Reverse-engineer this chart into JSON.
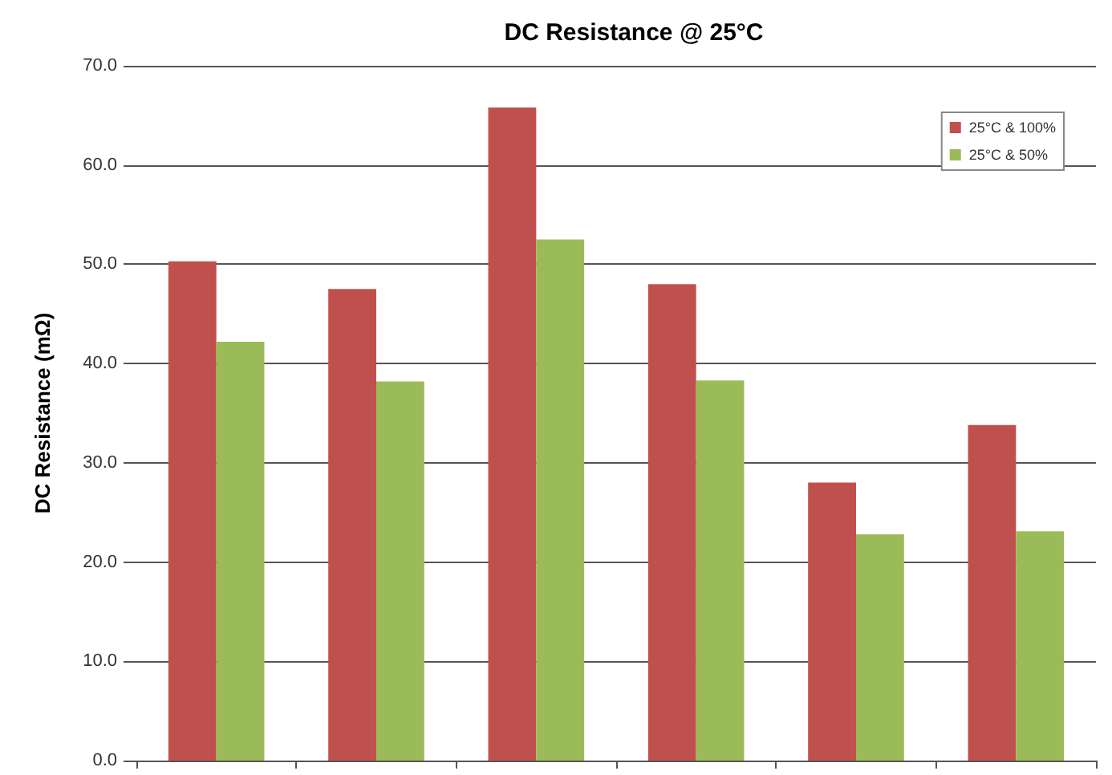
{
  "chart_data": {
    "type": "bar",
    "title": "DC Resistance @ 25°C",
    "ylabel": "DC Resistance (mΩ)",
    "categories": [
      null,
      null,
      null,
      null,
      null,
      null
    ],
    "series": [
      {
        "name": "25°C & 100%",
        "color": "#c0504d",
        "values": [
          50.3,
          47.5,
          65.8,
          48.0,
          28.0,
          33.8
        ]
      },
      {
        "name": "25°C & 50%",
        "color": "#9bbb59",
        "values": [
          42.2,
          38.2,
          52.5,
          38.3,
          22.8,
          23.1
        ]
      }
    ],
    "ylim": [
      0,
      70
    ],
    "yticks": [
      {
        "value": 0,
        "label": "0.0"
      },
      {
        "value": 10,
        "label": "10.0"
      },
      {
        "value": 20,
        "label": "20.0"
      },
      {
        "value": 30,
        "label": "30.0"
      },
      {
        "value": 40,
        "label": "40.0"
      },
      {
        "value": 50,
        "label": "50.0"
      },
      {
        "value": 60,
        "label": "60.0"
      },
      {
        "value": 70,
        "label": "70.0"
      }
    ],
    "grid": "y",
    "legend": "top right"
  }
}
